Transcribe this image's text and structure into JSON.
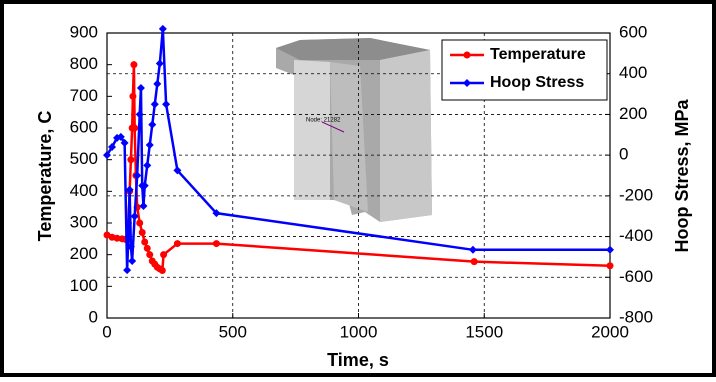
{
  "chart_data": {
    "type": "line",
    "xlabel": "Time, s",
    "ylabel": "Temperature, C",
    "y2label": "Hoop Stress, MPa",
    "annotation": "Node: 21282",
    "xlim": [
      0,
      2000
    ],
    "xticks": [
      0,
      500,
      1000,
      1500,
      2000
    ],
    "ylim": [
      0,
      900
    ],
    "yticks": [
      0,
      100,
      200,
      300,
      400,
      500,
      600,
      700,
      800,
      900
    ],
    "y2lim": [
      -800,
      600
    ],
    "y2ticks": [
      -800,
      -600,
      -400,
      -200,
      0,
      200,
      400,
      600
    ],
    "grid": true,
    "legend": "upper right",
    "series": [
      {
        "name": "Temperature",
        "color": "#ff0000",
        "marker": "circle",
        "axis": "y",
        "x": [
          0,
          20,
          40,
          60,
          75,
          85,
          90,
          95,
          100,
          103,
          107,
          110,
          115,
          120,
          130,
          140,
          150,
          160,
          170,
          180,
          190,
          200,
          210,
          220,
          225,
          280,
          435,
          1460,
          2000
        ],
        "values": [
          262,
          255,
          252,
          250,
          248,
          300,
          400,
          500,
          600,
          700,
          800,
          600,
          450,
          350,
          300,
          270,
          240,
          220,
          200,
          180,
          170,
          160,
          155,
          150,
          200,
          235,
          235,
          178,
          165
        ]
      },
      {
        "name": "Hoop Stress",
        "color": "#0000ff",
        "marker": "diamond",
        "axis": "y2",
        "x": [
          0,
          20,
          40,
          55,
          70,
          80,
          85,
          90,
          95,
          100,
          110,
          120,
          130,
          135,
          140,
          145,
          150,
          160,
          170,
          180,
          190,
          200,
          210,
          222,
          235,
          280,
          435,
          1455,
          2000
        ],
        "values": [
          0,
          40,
          85,
          90,
          60,
          -565,
          -400,
          -170,
          -450,
          -520,
          -300,
          -100,
          200,
          330,
          -150,
          -250,
          -150,
          -50,
          50,
          150,
          250,
          350,
          450,
          620,
          250,
          -75,
          -285,
          -465,
          -465
        ]
      }
    ]
  }
}
